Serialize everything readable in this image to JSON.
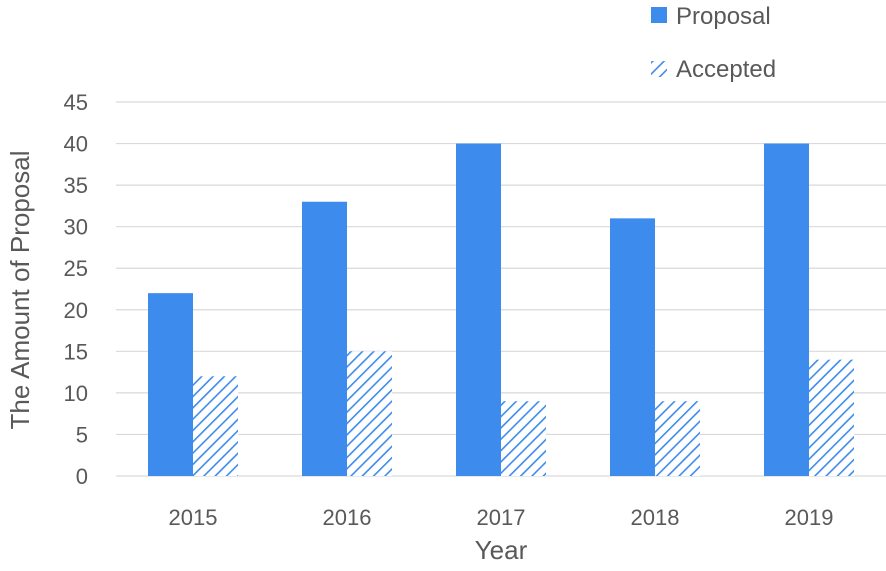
{
  "chart_data": {
    "type": "bar",
    "categories": [
      "2015",
      "2016",
      "2017",
      "2018",
      "2019"
    ],
    "series": [
      {
        "name": "Proposal",
        "values": [
          22,
          33,
          40,
          31,
          40
        ],
        "color": "#3d8bec",
        "fill": "solid"
      },
      {
        "name": "Accepted",
        "values": [
          12,
          15,
          9,
          9,
          14
        ],
        "color": "#3d8bec",
        "fill": "diagonal-hatch"
      }
    ],
    "xlabel": "Year",
    "ylabel": "The Amount of Proposal",
    "ylim": [
      0,
      45
    ],
    "yticks": [
      "0",
      "5",
      "10",
      "15",
      "20",
      "25",
      "30",
      "35",
      "40",
      "45"
    ],
    "grid": true,
    "legend": "top-right"
  }
}
